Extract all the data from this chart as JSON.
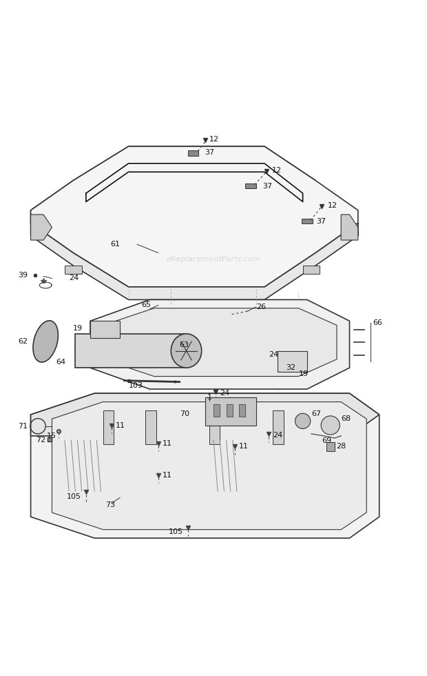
{
  "bg_color": "#ffffff",
  "watermark": "eReplacementParts.com",
  "col": "#333333",
  "lw_main": 1.2
}
